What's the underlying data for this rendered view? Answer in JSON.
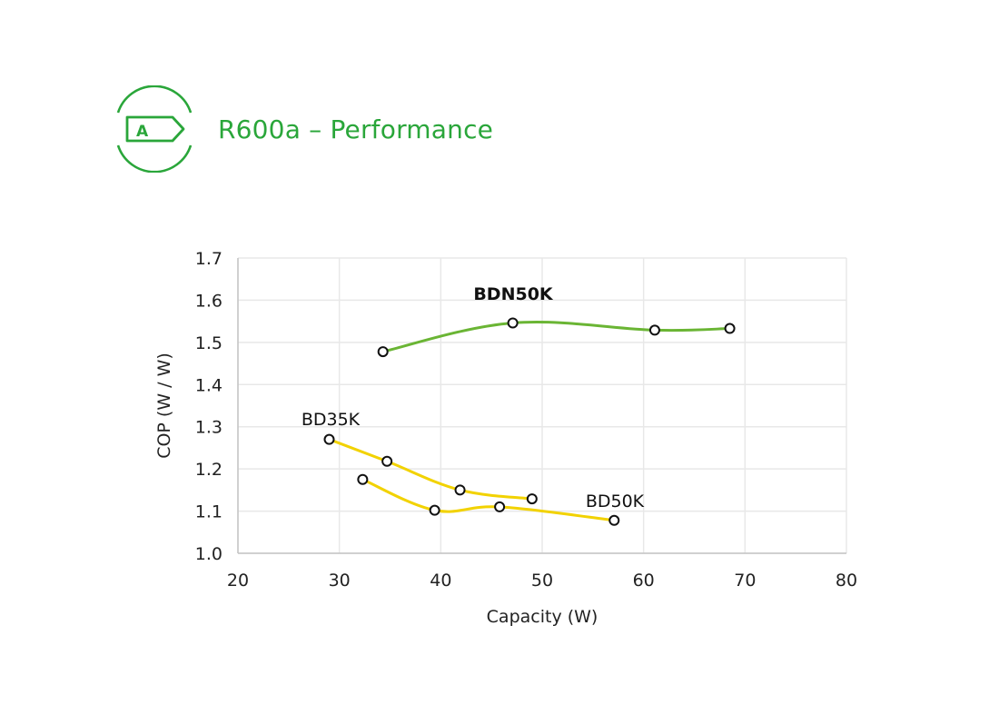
{
  "header": {
    "title": "R600a – Performance",
    "badge_letter": "A",
    "icon": "energy-label-a-icon",
    "brand_color": "#2aa63a"
  },
  "chart_data": {
    "type": "line",
    "xlabel": "Capacity (W)",
    "ylabel": "COP (W / W)",
    "xlim": [
      20,
      80
    ],
    "ylim": [
      1.0,
      1.7
    ],
    "x_ticks": [
      "20",
      "30",
      "40",
      "50",
      "60",
      "70",
      "80"
    ],
    "y_ticks": [
      "1.0",
      "1.1",
      "1.2",
      "1.3",
      "1.4",
      "1.5",
      "1.6",
      "1.7"
    ],
    "grid": true,
    "series": [
      {
        "name": "BDN50K",
        "color": "#6ab534",
        "bold_label": true,
        "x": [
          34.3,
          47.1,
          61.1,
          68.5
        ],
        "y": [
          1.478,
          1.546,
          1.529,
          1.533
        ]
      },
      {
        "name": "BD35K",
        "color": "#f2d200",
        "bold_label": false,
        "x": [
          29.0,
          34.7,
          41.9,
          49.0
        ],
        "y": [
          1.27,
          1.218,
          1.15,
          1.129
        ]
      },
      {
        "name": "BD50K",
        "color": "#f2d200",
        "bold_label": false,
        "x": [
          32.3,
          39.4,
          45.8,
          57.1
        ],
        "y": [
          1.175,
          1.102,
          1.11,
          1.078
        ]
      }
    ]
  }
}
